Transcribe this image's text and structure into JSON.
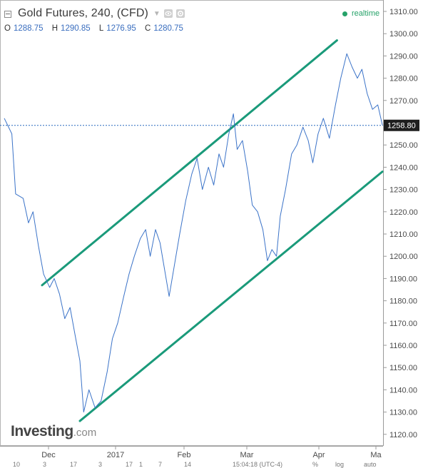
{
  "header": {
    "title": "Gold Futures, 240, (CFD)",
    "ohlc": [
      {
        "key": "O",
        "value": "1288.75"
      },
      {
        "key": "H",
        "value": "1290.85"
      },
      {
        "key": "L",
        "value": "1276.95"
      },
      {
        "key": "C",
        "value": "1280.75"
      }
    ],
    "realtime_label": "realtime"
  },
  "brand": {
    "name": "Investing",
    "domain": ".com"
  },
  "colors": {
    "price_line": "#3b73c8",
    "trend_line": "#1a9a7a",
    "axis_text": "#4a4a4a",
    "price_tag_bg": "#1e1e1e",
    "realtime": "#26a269"
  },
  "icons": [
    "collapse-icon",
    "dropdown-triangle-icon",
    "eye-icon",
    "settings-icon"
  ],
  "chart_data": {
    "type": "line",
    "title": "Gold Futures, 240, (CFD)",
    "ylim": [
      1115,
      1315
    ],
    "y_ticks": [
      "1120.00",
      "1130.00",
      "1140.00",
      "1150.00",
      "1160.00",
      "1170.00",
      "1180.00",
      "1190.00",
      "1200.00",
      "1210.00",
      "1220.00",
      "1230.00",
      "1240.00",
      "1250.00",
      "1260.00",
      "1270.00",
      "1280.00",
      "1290.00",
      "1300.00",
      "1310.00"
    ],
    "x_ticks": [
      "Dec",
      "2017",
      "Feb",
      "Mar",
      "Apr",
      "Ma"
    ],
    "current_price": 1258.8,
    "current_price_label": "1258.80",
    "series": [
      {
        "points": [
          {
            "x": 0.0,
            "y": 1262
          },
          {
            "x": 1.0,
            "y": 1255
          },
          {
            "x": 1.5,
            "y": 1228
          },
          {
            "x": 2.5,
            "y": 1226
          },
          {
            "x": 3.2,
            "y": 1215
          },
          {
            "x": 3.8,
            "y": 1220
          },
          {
            "x": 4.5,
            "y": 1205
          },
          {
            "x": 5.2,
            "y": 1192
          },
          {
            "x": 6.0,
            "y": 1186
          },
          {
            "x": 6.6,
            "y": 1190
          },
          {
            "x": 7.3,
            "y": 1183
          },
          {
            "x": 8.0,
            "y": 1172
          },
          {
            "x": 8.7,
            "y": 1177
          },
          {
            "x": 9.4,
            "y": 1164
          },
          {
            "x": 10.0,
            "y": 1153
          },
          {
            "x": 10.5,
            "y": 1130
          },
          {
            "x": 11.2,
            "y": 1140
          },
          {
            "x": 12.0,
            "y": 1132
          },
          {
            "x": 12.8,
            "y": 1135
          },
          {
            "x": 13.6,
            "y": 1148
          },
          {
            "x": 14.3,
            "y": 1163
          },
          {
            "x": 15.0,
            "y": 1170
          },
          {
            "x": 15.8,
            "y": 1182
          },
          {
            "x": 16.5,
            "y": 1192
          },
          {
            "x": 17.2,
            "y": 1200
          },
          {
            "x": 18.0,
            "y": 1208
          },
          {
            "x": 18.7,
            "y": 1212
          },
          {
            "x": 19.3,
            "y": 1200
          },
          {
            "x": 20.0,
            "y": 1212
          },
          {
            "x": 20.6,
            "y": 1206
          },
          {
            "x": 21.3,
            "y": 1192
          },
          {
            "x": 21.8,
            "y": 1182
          },
          {
            "x": 22.5,
            "y": 1196
          },
          {
            "x": 23.2,
            "y": 1210
          },
          {
            "x": 24.0,
            "y": 1225
          },
          {
            "x": 24.8,
            "y": 1237
          },
          {
            "x": 25.5,
            "y": 1244
          },
          {
            "x": 26.2,
            "y": 1230
          },
          {
            "x": 27.0,
            "y": 1240
          },
          {
            "x": 27.7,
            "y": 1232
          },
          {
            "x": 28.4,
            "y": 1246
          },
          {
            "x": 29.0,
            "y": 1240
          },
          {
            "x": 29.7,
            "y": 1255
          },
          {
            "x": 30.3,
            "y": 1264
          },
          {
            "x": 30.8,
            "y": 1248
          },
          {
            "x": 31.5,
            "y": 1252
          },
          {
            "x": 32.2,
            "y": 1238
          },
          {
            "x": 32.8,
            "y": 1223
          },
          {
            "x": 33.5,
            "y": 1220
          },
          {
            "x": 34.2,
            "y": 1212
          },
          {
            "x": 34.8,
            "y": 1198
          },
          {
            "x": 35.4,
            "y": 1203
          },
          {
            "x": 36.0,
            "y": 1200
          },
          {
            "x": 36.5,
            "y": 1218
          },
          {
            "x": 37.2,
            "y": 1230
          },
          {
            "x": 38.0,
            "y": 1246
          },
          {
            "x": 38.7,
            "y": 1250
          },
          {
            "x": 39.5,
            "y": 1258
          },
          {
            "x": 40.2,
            "y": 1252
          },
          {
            "x": 40.8,
            "y": 1242
          },
          {
            "x": 41.5,
            "y": 1255
          },
          {
            "x": 42.2,
            "y": 1262
          },
          {
            "x": 43.0,
            "y": 1253
          },
          {
            "x": 43.8,
            "y": 1268
          },
          {
            "x": 44.5,
            "y": 1280
          },
          {
            "x": 45.3,
            "y": 1291
          },
          {
            "x": 46.0,
            "y": 1285
          },
          {
            "x": 46.7,
            "y": 1280
          },
          {
            "x": 47.3,
            "y": 1284
          },
          {
            "x": 48.0,
            "y": 1273
          },
          {
            "x": 48.7,
            "y": 1266
          },
          {
            "x": 49.4,
            "y": 1268
          },
          {
            "x": 50.0,
            "y": 1259
          }
        ]
      }
    ],
    "trend_lines": [
      {
        "from": {
          "x": 5.0,
          "y": 1187
        },
        "to": {
          "x": 44.0,
          "y": 1297
        }
      },
      {
        "from": {
          "x": 10.0,
          "y": 1126
        },
        "to": {
          "x": 50.0,
          "y": 1238
        }
      }
    ]
  },
  "bottom_strip": [
    "10",
    "3",
    "17",
    "3",
    "17",
    "1",
    "7",
    "14",
    "15:04:18 (UTC-4)",
    "%",
    "log",
    "auto"
  ]
}
